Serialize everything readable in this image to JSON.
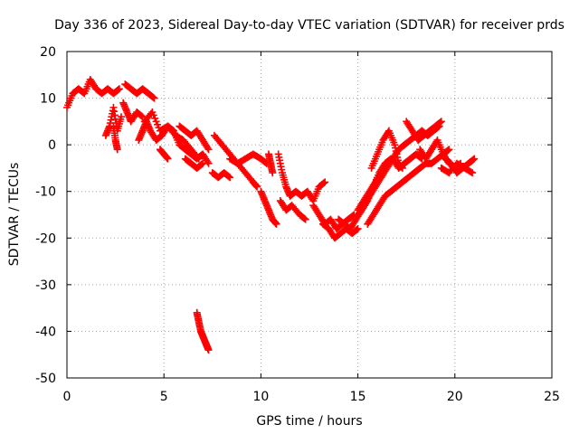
{
  "chart_data": {
    "type": "scatter",
    "title": "Day 336 of 2023, Sidereal Day-to-day VTEC variation (SDTVAR) for receiver prds",
    "xlabel": "GPS time / hours",
    "ylabel": "SDTVAR / TECUs",
    "xlim": [
      0,
      25
    ],
    "ylim": [
      -50,
      20
    ],
    "xticks": [
      0,
      5,
      10,
      15,
      20,
      25
    ],
    "yticks": [
      -50,
      -40,
      -30,
      -20,
      -10,
      0,
      10,
      20
    ],
    "grid": true,
    "marker": "+",
    "series": [
      {
        "name": "SDTVAR",
        "color": "#ff0000",
        "segments": [
          {
            "x": [
              0.0,
              0.3,
              0.6,
              0.9,
              1.2,
              1.5,
              1.8,
              2.1,
              2.4,
              2.7
            ],
            "y": [
              8,
              11,
              12,
              11,
              14,
              12,
              11,
              12,
              11,
              12
            ]
          },
          {
            "x": [
              2.0,
              2.2,
              2.4,
              2.6,
              2.8
            ],
            "y": [
              2,
              4,
              8,
              3,
              6
            ]
          },
          {
            "x": [
              2.4,
              2.5,
              2.6
            ],
            "y": [
              4,
              1,
              -1
            ]
          },
          {
            "x": [
              3.0,
              3.3,
              3.6,
              3.9,
              4.2,
              4.5
            ],
            "y": [
              13,
              12,
              11,
              12,
              11,
              10
            ]
          },
          {
            "x": [
              2.9,
              3.1,
              3.3,
              3.6,
              3.9
            ],
            "y": [
              9,
              7,
              5,
              7,
              6
            ]
          },
          {
            "x": [
              3.7,
              3.9,
              4.1,
              4.3,
              4.6,
              4.9,
              5.2,
              5.5,
              5.8,
              6.1,
              6.4,
              6.7,
              7.0,
              7.3
            ],
            "y": [
              1,
              3,
              5,
              3,
              1,
              2,
              4,
              3,
              0,
              -1,
              -2,
              -3,
              -2,
              -4
            ]
          },
          {
            "x": [
              4.0,
              4.4,
              4.8,
              5.2,
              5.6,
              6.0,
              6.4,
              6.8
            ],
            "y": [
              5,
              7,
              3,
              4,
              2,
              1,
              -1,
              -3
            ]
          },
          {
            "x": [
              4.8,
              5.0,
              5.2
            ],
            "y": [
              -1,
              -2,
              -3
            ]
          },
          {
            "x": [
              5.8,
              6.1,
              6.4,
              6.7,
              7.0,
              7.3
            ],
            "y": [
              4,
              3,
              2,
              3,
              1,
              -1
            ]
          },
          {
            "x": [
              6.1,
              6.4,
              6.7,
              7.0
            ],
            "y": [
              -3,
              -4,
              -5,
              -4
            ]
          },
          {
            "x": [
              7.5,
              7.8,
              8.1,
              8.4
            ],
            "y": [
              -6,
              -7,
              -6,
              -7
            ]
          },
          {
            "x": [
              7.6,
              8.0,
              8.4,
              8.8,
              9.2,
              9.6,
              10.0,
              10.3
            ],
            "y": [
              2,
              0,
              -2,
              -4,
              -3,
              -2,
              -3,
              -4
            ]
          },
          {
            "x": [
              8.4,
              8.8,
              9.2,
              9.6,
              9.8
            ],
            "y": [
              -3,
              -4,
              -6,
              -8,
              -9
            ]
          },
          {
            "x": [
              10.0,
              10.2,
              10.4,
              10.6,
              10.8
            ],
            "y": [
              -10,
              -12,
              -14,
              -16,
              -17
            ]
          },
          {
            "x": [
              10.4,
              10.5,
              10.6
            ],
            "y": [
              -2,
              -4,
              -6
            ]
          },
          {
            "x": [
              10.9,
              11.1,
              11.3,
              11.5,
              11.8,
              12.1,
              12.4,
              12.7,
              13.0,
              13.3
            ],
            "y": [
              -2,
              -6,
              -9,
              -11,
              -10,
              -11,
              -10,
              -12,
              -9,
              -8
            ]
          },
          {
            "x": [
              11.0,
              11.3,
              11.6,
              12.0,
              12.3
            ],
            "y": [
              -12,
              -14,
              -13,
              -15,
              -16
            ]
          },
          {
            "x": [
              12.7,
              13.0,
              13.3,
              13.6,
              13.9,
              14.2,
              14.5,
              14.8
            ],
            "y": [
              -13,
              -15,
              -17,
              -16,
              -18,
              -17,
              -16,
              -15
            ]
          },
          {
            "x": [
              13.2,
              13.5,
              13.8,
              14.1,
              14.4,
              14.7,
              15.0
            ],
            "y": [
              -17,
              -18,
              -20,
              -19,
              -18,
              -19,
              -18
            ]
          },
          {
            "x": [
              14.0,
              14.3,
              14.6,
              14.9,
              15.2,
              15.5,
              15.8,
              16.1,
              16.4,
              16.7
            ],
            "y": [
              -16,
              -17,
              -18,
              -16,
              -14,
              -12,
              -9,
              -6,
              -4,
              -3
            ]
          },
          {
            "x": [
              15.0,
              15.3,
              15.6,
              15.9,
              16.2,
              16.5,
              16.8,
              17.1,
              17.4,
              17.7,
              18.0,
              18.3
            ],
            "y": [
              -14,
              -12,
              -10,
              -8,
              -6,
              -4,
              -3,
              -5,
              -4,
              -3,
              -2,
              -3
            ]
          },
          {
            "x": [
              15.0,
              15.3,
              15.6,
              15.9,
              16.2,
              16.5,
              16.8,
              17.1,
              17.4,
              17.7,
              18.0,
              18.3,
              18.6,
              18.9,
              19.2
            ],
            "y": [
              -15,
              -13,
              -11,
              -9,
              -7,
              -5,
              -3,
              -1,
              0,
              1,
              2,
              3,
              2,
              3,
              4
            ]
          },
          {
            "x": [
              15.5,
              15.8,
              16.1,
              16.4,
              16.7,
              17.0,
              17.3,
              17.6,
              17.9,
              18.2,
              18.5,
              18.8,
              19.1,
              19.4,
              19.7
            ],
            "y": [
              -17,
              -15,
              -13,
              -11,
              -10,
              -9,
              -8,
              -7,
              -6,
              -5,
              -4,
              -4,
              -3,
              -2,
              -1
            ]
          },
          {
            "x": [
              15.7,
              16.0,
              16.3,
              16.6,
              16.9,
              17.1,
              17.3
            ],
            "y": [
              -5,
              -2,
              1,
              3,
              0,
              -4,
              -5
            ]
          },
          {
            "x": [
              17.5,
              17.8,
              18.1,
              18.4,
              18.7,
              19.0,
              19.3
            ],
            "y": [
              5,
              3,
              1,
              2,
              3,
              4,
              5
            ]
          },
          {
            "x": [
              18.2,
              18.5,
              18.8,
              19.1,
              19.4,
              19.7,
              20.0,
              20.3
            ],
            "y": [
              -1,
              -3,
              -1,
              1,
              -2,
              -4,
              -5,
              -4
            ]
          },
          {
            "x": [
              19.5,
              19.8,
              20.1,
              20.4,
              20.7,
              21.0
            ],
            "y": [
              -3,
              -4,
              -6,
              -5,
              -4,
              -3
            ]
          },
          {
            "x": [
              19.3,
              19.7,
              20.1,
              20.5,
              20.9
            ],
            "y": [
              -5,
              -6,
              -4,
              -5,
              -6
            ]
          },
          {
            "x": [
              6.7,
              6.8,
              6.9,
              7.0,
              7.1,
              7.2,
              7.3
            ],
            "y": [
              -36,
              -38,
              -40,
              -41,
              -42,
              -43,
              -44
            ]
          }
        ]
      }
    ]
  }
}
